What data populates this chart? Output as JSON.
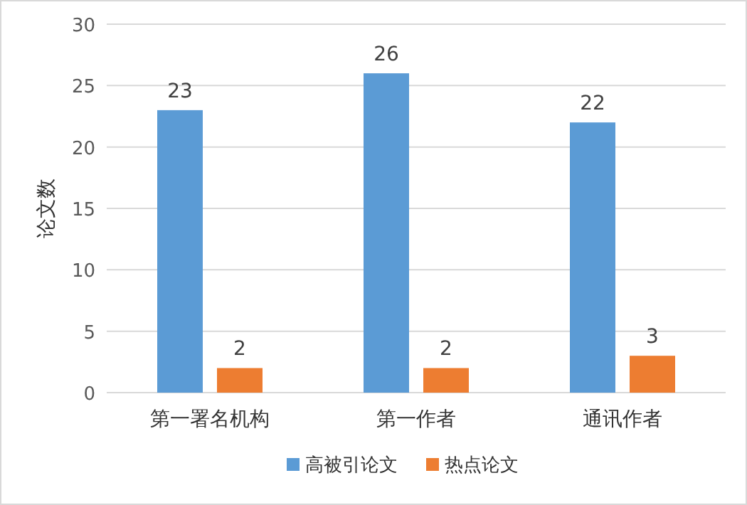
{
  "chart_data": {
    "type": "bar",
    "ylabel": "论文数",
    "categories": [
      "第一署名机构",
      "第一作者",
      "通讯作者"
    ],
    "series": [
      {
        "name": "高被引论文",
        "color": "#5b9bd5",
        "values": [
          23,
          26,
          22
        ]
      },
      {
        "name": "热点论文",
        "color": "#ed7d31",
        "values": [
          2,
          2,
          3
        ]
      }
    ],
    "ylim": [
      0,
      30
    ],
    "yticks": [
      0,
      5,
      10,
      15,
      20,
      25,
      30
    ],
    "grid": "y",
    "legend": "bottom",
    "data_labels": true
  }
}
